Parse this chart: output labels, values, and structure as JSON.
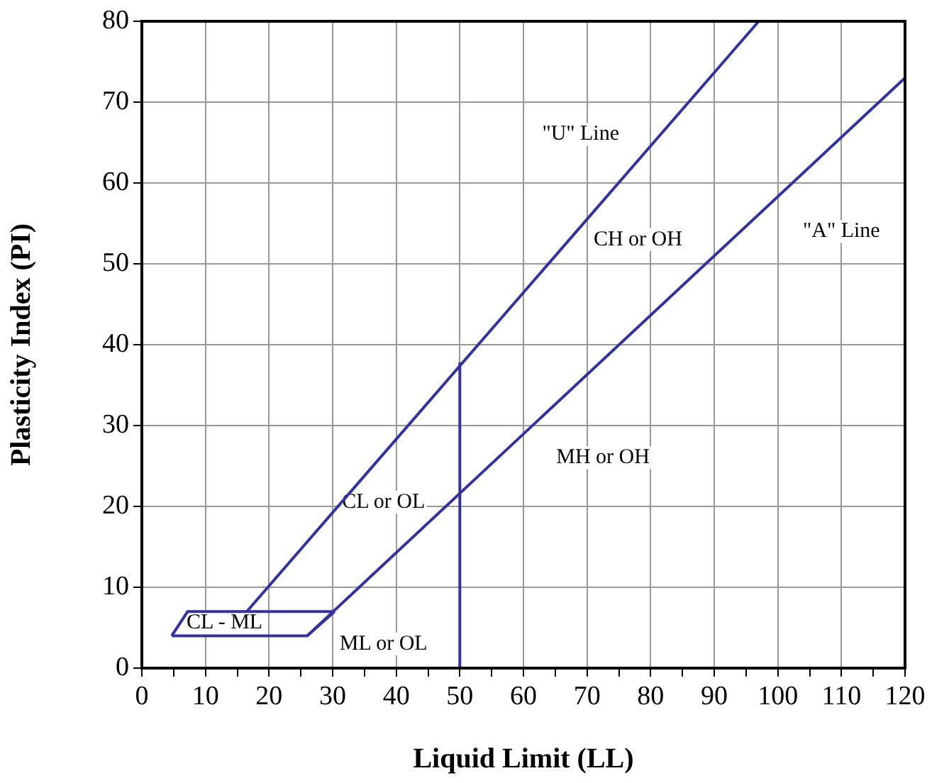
{
  "chart_data": {
    "type": "line",
    "xlabel": "Liquid Limit (LL)",
    "ylabel": "Plasticity Index (PI)",
    "xlim": [
      0,
      120
    ],
    "ylim": [
      0,
      80
    ],
    "xticks": [
      0,
      {
        "value": 5,
        "label": null
      },
      10,
      {
        "value": 15,
        "label": null
      },
      20,
      {
        "value": 25,
        "label": null
      },
      30,
      {
        "value": 35,
        "label": null
      },
      40,
      {
        "value": 45,
        "label": null
      },
      50,
      {
        "value": 55,
        "label": null
      },
      60,
      {
        "value": 65,
        "label": null
      },
      70,
      {
        "value": 75,
        "label": null
      },
      80,
      {
        "value": 85,
        "label": null
      },
      90,
      {
        "value": 95,
        "label": null
      },
      100,
      {
        "value": 105,
        "label": null
      },
      110,
      {
        "value": 115,
        "label": null
      },
      120
    ],
    "yticks": [
      0,
      10,
      20,
      30,
      40,
      50,
      60,
      70,
      80
    ],
    "grid": true,
    "legend": false,
    "marker": "none",
    "line_style": "solid",
    "series": [
      {
        "color": "#333399",
        "x": [
          16.5,
          97
        ],
        "values": [
          7,
          80
        ]
      },
      {
        "color": "#333399",
        "x": [
          26,
          120
        ],
        "values": [
          4,
          73
        ]
      },
      {
        "color": "#333399",
        "x": [
          4.7,
          26,
          30.3
        ],
        "values": [
          4,
          4,
          7
        ]
      },
      {
        "color": "#333399",
        "x": [
          4.7,
          7.2,
          30.3
        ],
        "values": [
          4,
          7,
          7
        ]
      },
      {
        "color": "#333399",
        "x": [
          50,
          50
        ],
        "values": [
          0,
          37.8
        ]
      }
    ],
    "annotations": [
      "\"U\" Line",
      "\"A\" Line",
      "CH or OH",
      "MH or OH",
      "CL or OL",
      "CL - ML",
      "ML or OL"
    ]
  }
}
